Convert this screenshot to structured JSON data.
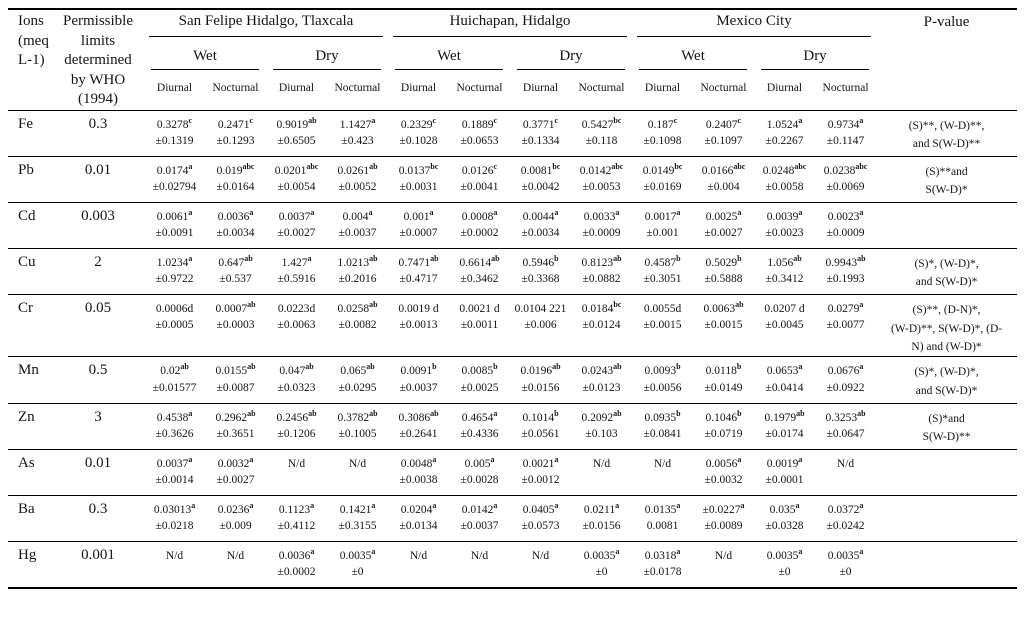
{
  "table": {
    "header": {
      "ions": "Ions\n(meq\nL-1)",
      "limits": "Permissible\nlimits\ndetermined\nby WHO\n(1994)",
      "pvalue": "P-value",
      "sites": [
        {
          "name": "San Felipe Hidalgo, Tlaxcala"
        },
        {
          "name": "Huichapan, Hidalgo"
        },
        {
          "name": "Mexico City"
        }
      ],
      "seasons": [
        "Wet",
        "Dry"
      ],
      "periods": [
        "Diurnal",
        "Nocturnal"
      ]
    },
    "rows": [
      {
        "ion": "Fe",
        "limit": "0.3",
        "cells": [
          {
            "v": "0.3278",
            "sup": "c",
            "sd": "±0.1319"
          },
          {
            "v": "0.2471",
            "sup": "c",
            "sd": "±0.1293"
          },
          {
            "v": "0.9019",
            "sup": "ab",
            "sd": "±0.6505"
          },
          {
            "v": "1.1427",
            "sup": "a",
            "sd": "±0.423"
          },
          {
            "v": "0.2329",
            "sup": "c",
            "sd": "±0.1028"
          },
          {
            "v": "0.1889",
            "sup": "c",
            "sd": "±0.0653"
          },
          {
            "v": "0.3771",
            "sup": "c",
            "sd": "±0.1334"
          },
          {
            "v": "0.5427",
            "sup": "bc",
            "sd": "±0.118"
          },
          {
            "v": "0.187",
            "sup": "c",
            "sd": "±0.1098"
          },
          {
            "v": "0.2407",
            "sup": "c",
            "sd": "±0.1097"
          },
          {
            "v": "1.0524",
            "sup": "a",
            "sd": "±0.2267"
          },
          {
            "v": "0.9734",
            "sup": "a",
            "sd": "±0.1147"
          }
        ],
        "p": "(S)**, (W-D)**,\nand S(W-D)**"
      },
      {
        "ion": "Pb",
        "limit": "0.01",
        "cells": [
          {
            "v": "0.0174",
            "sup": "a",
            "sd": "±0.02794"
          },
          {
            "v": "0.019",
            "sup": "abc",
            "sd": "±0.0164"
          },
          {
            "v": "0.0201",
            "sup": "abc",
            "sd": "±0.0054"
          },
          {
            "v": "0.0261",
            "sup": "ab",
            "sd": "±0.0052"
          },
          {
            "v": "0.0137",
            "sup": "bc",
            "sd": "±0.0031"
          },
          {
            "v": "0.0126",
            "sup": "c",
            "sd": "±0.0041"
          },
          {
            "v": "0.0081",
            "sup": "bc",
            "sd": "±0.0042"
          },
          {
            "v": "0.0142",
            "sup": "abc",
            "sd": "±0.0053"
          },
          {
            "v": "0.0149",
            "sup": "bc",
            "sd": "±0.0169"
          },
          {
            "v": "0.0166",
            "sup": "abc",
            "sd": "±0.004"
          },
          {
            "v": "0.0248",
            "sup": "abc",
            "sd": "±0.0058"
          },
          {
            "v": "0.0238",
            "sup": "abc",
            "sd": "±0.0069"
          }
        ],
        "p": "(S)**and\nS(W-D)*"
      },
      {
        "ion": "Cd",
        "limit": "0.003",
        "cells": [
          {
            "v": "0.0061",
            "sup": "a",
            "sd": "±0.0091"
          },
          {
            "v": "0.0036",
            "sup": "a",
            "sd": "±0.0034"
          },
          {
            "v": "0.0037",
            "sup": "a",
            "sd": "±0.0027"
          },
          {
            "v": "0.004",
            "sup": "a",
            "sd": "±0.0037"
          },
          {
            "v": "0.001",
            "sup": "a",
            "sd": "±0.0007"
          },
          {
            "v": "0.0008",
            "sup": "a",
            "sd": "±0.0002"
          },
          {
            "v": "0.0044",
            "sup": "a",
            "sd": "±0.0034"
          },
          {
            "v": "0.0033",
            "sup": "a",
            "sd": "±0.0009"
          },
          {
            "v": "0.0017",
            "sup": "a",
            "sd": "±0.001"
          },
          {
            "v": "0.0025",
            "sup": "a",
            "sd": "±0.0027"
          },
          {
            "v": "0.0039",
            "sup": "a",
            "sd": "±0.0023"
          },
          {
            "v": "0.0023",
            "sup": "a",
            "sd": "±0.0009"
          }
        ],
        "p": ""
      },
      {
        "ion": "Cu",
        "limit": "2",
        "cells": [
          {
            "v": "1.0234",
            "sup": "a",
            "sd": "±0.9722"
          },
          {
            "v": "0.647",
            "sup": "ab",
            "sd": "±0.537"
          },
          {
            "v": "1.427",
            "sup": "a",
            "sd": "±0.5916"
          },
          {
            "v": "1.0213",
            "sup": "ab",
            "sd": "±0.2016"
          },
          {
            "v": "0.7471",
            "sup": "ab",
            "sd": "±0.4717"
          },
          {
            "v": "0.6614",
            "sup": "ab",
            "sd": "±0.3462"
          },
          {
            "v": "0.5946",
            "sup": "b",
            "sd": "±0.3368"
          },
          {
            "v": "0.8123",
            "sup": "ab",
            "sd": "±0.0882"
          },
          {
            "v": "0.4587",
            "sup": "b",
            "sd": "±0.3051"
          },
          {
            "v": "0.5029",
            "sup": "b",
            "sd": "±0.5888"
          },
          {
            "v": "1.056",
            "sup": "ab",
            "sd": "±0.3412"
          },
          {
            "v": "0.9943",
            "sup": "ab",
            "sd": "±0.1993"
          }
        ],
        "p": "(S)*, (W-D)*,\nand S(W-D)*"
      },
      {
        "ion": "Cr",
        "limit": "0.05",
        "cells": [
          {
            "v": "0.0006d",
            "sup": "",
            "sd": "±0.0005"
          },
          {
            "v": "0.0007",
            "sup": "ab",
            "sd": "±0.0003"
          },
          {
            "v": "0.0223d",
            "sup": "",
            "sd": "±0.0063"
          },
          {
            "v": "0.0258",
            "sup": "ab",
            "sd": "±0.0082"
          },
          {
            "v": "0.0019 d",
            "sup": "",
            "sd": "±0.0013"
          },
          {
            "v": "0.0021 d",
            "sup": "",
            "sd": "±0.0011"
          },
          {
            "v": "0.0104 221",
            "sup": "",
            "sd": "±0.006"
          },
          {
            "v": "0.0184",
            "sup": "bc",
            "sd": "±0.0124"
          },
          {
            "v": "0.0055d",
            "sup": "",
            "sd": "±0.0015"
          },
          {
            "v": "0.0063",
            "sup": "ab",
            "sd": "±0.0015"
          },
          {
            "v": "0.0207 d",
            "sup": "",
            "sd": "±0.0045"
          },
          {
            "v": "0.0279",
            "sup": "a",
            "sd": "±0.0077"
          }
        ],
        "p": "(S)**, (D-N)*,\n(W-D)**, S(W-D)*, (D-\nN) and (W-D)*"
      },
      {
        "ion": "Mn",
        "limit": "0.5",
        "cells": [
          {
            "v": "0.02",
            "sup": "ab",
            "sd": "±0.01577"
          },
          {
            "v": "0.0155",
            "sup": "ab",
            "sd": "±0.0087"
          },
          {
            "v": "0.047",
            "sup": "ab",
            "sd": "±0.0323"
          },
          {
            "v": "0.065",
            "sup": "ab",
            "sd": "±0.0295"
          },
          {
            "v": "0.0091",
            "sup": "b",
            "sd": "±0.0037"
          },
          {
            "v": "0.0085",
            "sup": "b",
            "sd": "±0.0025"
          },
          {
            "v": "0.0196",
            "sup": "ab",
            "sd": "±0.0156"
          },
          {
            "v": "0.0243",
            "sup": "ab",
            "sd": "±0.0123"
          },
          {
            "v": "0.0093",
            "sup": "b",
            "sd": "±0.0056"
          },
          {
            "v": "0.0118",
            "sup": "b",
            "sd": "±0.0149"
          },
          {
            "v": "0.0653",
            "sup": "a",
            "sd": "±0.0414"
          },
          {
            "v": "0.0676",
            "sup": "a",
            "sd": "±0.0922"
          }
        ],
        "p": "(S)*, (W-D)*,\nand S(W-D)*"
      },
      {
        "ion": "Zn",
        "limit": "3",
        "cells": [
          {
            "v": "0.4538",
            "sup": "a",
            "sd": "±0.3626"
          },
          {
            "v": "0.2962",
            "sup": "ab",
            "sd": "±0.3651"
          },
          {
            "v": "0.2456",
            "sup": "ab",
            "sd": "±0.1206"
          },
          {
            "v": "0.3782",
            "sup": "ab",
            "sd": "±0.1005"
          },
          {
            "v": "0.3086",
            "sup": "ab",
            "sd": "±0.2641"
          },
          {
            "v": "0.4654",
            "sup": "a",
            "sd": "±0.4336"
          },
          {
            "v": "0.1014",
            "sup": "b",
            "sd": "±0.0561"
          },
          {
            "v": "0.2092",
            "sup": "ab",
            "sd": "±0.103"
          },
          {
            "v": "0.0935",
            "sup": "b",
            "sd": "±0.0841"
          },
          {
            "v": "0.1046",
            "sup": "b",
            "sd": "±0.0719"
          },
          {
            "v": "0.1979",
            "sup": "ab",
            "sd": "±0.0174"
          },
          {
            "v": "0.3253",
            "sup": "ab",
            "sd": "±0.0647"
          }
        ],
        "p": "(S)*and\nS(W-D)**"
      },
      {
        "ion": "As",
        "limit": "0.01",
        "cells": [
          {
            "v": "0.0037",
            "sup": "a",
            "sd": "±0.0014"
          },
          {
            "v": "0.0032",
            "sup": "a",
            "sd": "±0.0027"
          },
          {
            "v": "N/d",
            "sup": "",
            "sd": ""
          },
          {
            "v": "N/d",
            "sup": "",
            "sd": ""
          },
          {
            "v": "0.0048",
            "sup": "a",
            "sd": "±0.0038"
          },
          {
            "v": "0.005",
            "sup": "a",
            "sd": "±0.0028"
          },
          {
            "v": "0.0021",
            "sup": "a",
            "sd": "±0.0012"
          },
          {
            "v": "N/d",
            "sup": "",
            "sd": ""
          },
          {
            "v": "N/d",
            "sup": "",
            "sd": ""
          },
          {
            "v": "0.0056",
            "sup": "a",
            "sd": "±0.0032"
          },
          {
            "v": "0.0019",
            "sup": "a",
            "sd": "±0.0001"
          },
          {
            "v": "N/d",
            "sup": "",
            "sd": ""
          }
        ],
        "p": ""
      },
      {
        "ion": "Ba",
        "limit": "0.3",
        "cells": [
          {
            "v": "0.03013",
            "sup": "a",
            "sd": "±0.0218"
          },
          {
            "v": "0.0236",
            "sup": "a",
            "sd": "±0.009"
          },
          {
            "v": "0.1123",
            "sup": "a",
            "sd": "±0.4112"
          },
          {
            "v": "0.1421",
            "sup": "a",
            "sd": "±0.3155"
          },
          {
            "v": "0.0204",
            "sup": "a",
            "sd": "±0.0134"
          },
          {
            "v": "0.0142",
            "sup": "a",
            "sd": "±0.0037"
          },
          {
            "v": "0.0405",
            "sup": "a",
            "sd": "±0.0573"
          },
          {
            "v": "0.0211",
            "sup": "a",
            "sd": "±0.0156"
          },
          {
            "v": "0.0135",
            "sup": "a",
            "sd": "0.0081"
          },
          {
            "v": "±0.0227",
            "sup": "a",
            "sd": "±0.0089"
          },
          {
            "v": "0.035",
            "sup": "a",
            "sd": "±0.0328"
          },
          {
            "v": "0.0372",
            "sup": "a",
            "sd": "±0.0242"
          }
        ],
        "p": ""
      },
      {
        "ion": "Hg",
        "limit": "0.001",
        "cells": [
          {
            "v": "N/d",
            "sup": "",
            "sd": ""
          },
          {
            "v": "N/d",
            "sup": "",
            "sd": ""
          },
          {
            "v": "0.0036",
            "sup": "a",
            "sd": "±0.0002"
          },
          {
            "v": "0.0035",
            "sup": "a",
            "sd": "±0"
          },
          {
            "v": "N/d",
            "sup": "",
            "sd": ""
          },
          {
            "v": "N/d",
            "sup": "",
            "sd": ""
          },
          {
            "v": "N/d",
            "sup": "",
            "sd": ""
          },
          {
            "v": "0.0035",
            "sup": "a",
            "sd": "±0"
          },
          {
            "v": "0.0318",
            "sup": "a",
            "sd": "±0.0178"
          },
          {
            "v": "N/d",
            "sup": "",
            "sd": ""
          },
          {
            "v": "0.0035",
            "sup": "a",
            "sd": "±0"
          },
          {
            "v": "0.0035",
            "sup": "a",
            "sd": "±0"
          }
        ],
        "p": ""
      }
    ]
  }
}
